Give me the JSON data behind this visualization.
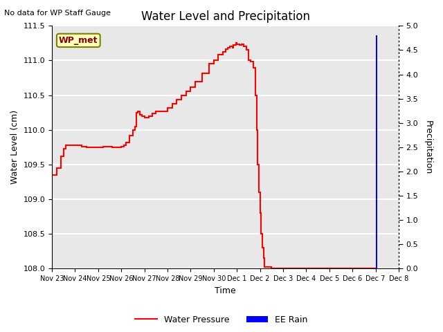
{
  "title": "Water Level and Precipitation",
  "top_left_text": "No data for WP Staff Gauge",
  "annotation_label": "WP_met",
  "xlabel": "Time",
  "ylabel_left": "Water Level (cm)",
  "ylabel_right": "Precipitation",
  "ylim_left": [
    108.0,
    111.5
  ],
  "ylim_right": [
    0.0,
    5.0
  ],
  "yticks_left": [
    108.0,
    108.5,
    109.0,
    109.5,
    110.0,
    110.5,
    111.0,
    111.5
  ],
  "yticks_right": [
    0.0,
    0.5,
    1.0,
    1.5,
    2.0,
    2.5,
    3.0,
    3.5,
    4.0,
    4.5,
    5.0
  ],
  "water_level_color": "#FF0000",
  "rain_color": "#0000FF",
  "legend_water": "Water Pressure",
  "legend_rain": "EE Rain",
  "background_color": "#E8E8E8",
  "grid_color": "#FFFFFF",
  "water_pressure_data": [
    [
      0,
      109.35
    ],
    [
      0.2,
      109.45
    ],
    [
      0.4,
      109.62
    ],
    [
      0.5,
      109.73
    ],
    [
      0.6,
      109.78
    ],
    [
      0.7,
      109.78
    ],
    [
      1.0,
      109.78
    ],
    [
      1.3,
      109.76
    ],
    [
      1.5,
      109.75
    ],
    [
      1.7,
      109.75
    ],
    [
      2.0,
      109.75
    ],
    [
      2.2,
      109.76
    ],
    [
      2.4,
      109.76
    ],
    [
      2.6,
      109.75
    ],
    [
      2.8,
      109.75
    ],
    [
      3.0,
      109.76
    ],
    [
      3.1,
      109.78
    ],
    [
      3.2,
      109.82
    ],
    [
      3.35,
      109.92
    ],
    [
      3.5,
      110.0
    ],
    [
      3.6,
      110.05
    ],
    [
      3.65,
      110.25
    ],
    [
      3.7,
      110.27
    ],
    [
      3.8,
      110.22
    ],
    [
      3.9,
      110.2
    ],
    [
      4.0,
      110.18
    ],
    [
      4.1,
      110.18
    ],
    [
      4.2,
      110.2
    ],
    [
      4.35,
      110.24
    ],
    [
      4.5,
      110.27
    ],
    [
      4.65,
      110.27
    ],
    [
      4.8,
      110.27
    ],
    [
      5.0,
      110.32
    ],
    [
      5.2,
      110.38
    ],
    [
      5.4,
      110.44
    ],
    [
      5.6,
      110.5
    ],
    [
      5.8,
      110.56
    ],
    [
      6.0,
      110.62
    ],
    [
      6.2,
      110.7
    ],
    [
      6.5,
      110.82
    ],
    [
      6.8,
      110.95
    ],
    [
      7.0,
      111.0
    ],
    [
      7.2,
      111.08
    ],
    [
      7.4,
      111.12
    ],
    [
      7.5,
      111.16
    ],
    [
      7.6,
      111.18
    ],
    [
      7.7,
      111.2
    ],
    [
      7.8,
      111.18
    ],
    [
      7.85,
      111.22
    ],
    [
      7.95,
      111.25
    ],
    [
      8.0,
      111.23
    ],
    [
      8.1,
      111.22
    ],
    [
      8.2,
      111.23
    ],
    [
      8.3,
      111.2
    ],
    [
      8.4,
      111.15
    ],
    [
      8.5,
      111.0
    ],
    [
      8.6,
      110.98
    ],
    [
      8.7,
      110.9
    ],
    [
      8.8,
      110.5
    ],
    [
      8.85,
      110.0
    ],
    [
      8.9,
      109.5
    ],
    [
      8.95,
      109.1
    ],
    [
      9.0,
      108.8
    ],
    [
      9.05,
      108.5
    ],
    [
      9.1,
      108.3
    ],
    [
      9.15,
      108.15
    ],
    [
      9.18,
      108.05
    ],
    [
      9.2,
      108.02
    ],
    [
      9.3,
      108.02
    ],
    [
      9.4,
      108.02
    ],
    [
      9.5,
      108.0
    ],
    [
      10.0,
      108.0
    ],
    [
      11.0,
      108.0
    ],
    [
      13.0,
      108.0
    ],
    [
      14.0,
      108.0
    ]
  ],
  "rain_bar_x": 14.0,
  "rain_bar_height": 4.8,
  "rain_bar_width": 0.06,
  "xtick_labels": [
    "Nov 23",
    "Nov 24",
    "Nov 25",
    "Nov 26",
    "Nov 27",
    "Nov 28",
    "Nov 29",
    "Nov 30",
    "Dec 1",
    "Dec 2",
    "Dec 3",
    "Dec 4",
    "Dec 5",
    "Dec 6",
    "Dec 7",
    "Dec 8"
  ],
  "xtick_positions": [
    0,
    1,
    2,
    3,
    4,
    5,
    6,
    7,
    8,
    9,
    10,
    11,
    12,
    13,
    14,
    15
  ]
}
